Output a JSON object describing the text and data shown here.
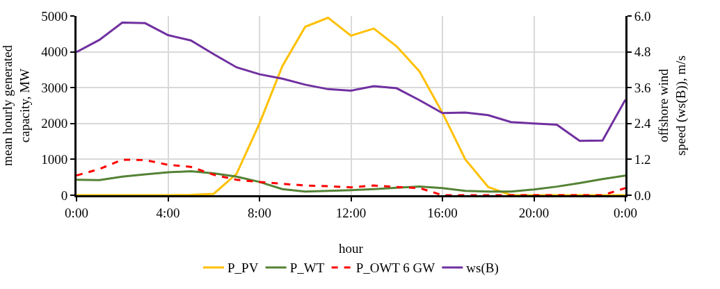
{
  "chart_data": {
    "type": "line",
    "xlabel": "hour",
    "ylabel": "mean hourly generated capacity, MW",
    "y2label": "offshore wind speed (ws(B)), m/s",
    "x": [
      0,
      1,
      2,
      3,
      4,
      5,
      6,
      7,
      8,
      9,
      10,
      11,
      12,
      13,
      14,
      15,
      16,
      17,
      18,
      19,
      20,
      21,
      22,
      23,
      24
    ],
    "xlim": [
      0,
      24
    ],
    "xticks": [
      {
        "value": 0,
        "label": "0:00"
      },
      {
        "value": 4,
        "label": "4:00"
      },
      {
        "value": 8,
        "label": "8:00"
      },
      {
        "value": 12,
        "label": "12:00"
      },
      {
        "value": 16,
        "label": "16:00"
      },
      {
        "value": 20,
        "label": "20:00"
      },
      {
        "value": 24,
        "label": "0:00"
      }
    ],
    "ylim": [
      0,
      5000
    ],
    "yticks": [
      0,
      1000,
      2000,
      3000,
      4000,
      5000
    ],
    "y2lim": [
      0,
      6
    ],
    "y2ticks": [
      {
        "value": 0,
        "label": "0.0"
      },
      {
        "value": 1.2,
        "label": "1.2"
      },
      {
        "value": 2.4,
        "label": "2.4"
      },
      {
        "value": 3.6,
        "label": "3.6"
      },
      {
        "value": 4.8,
        "label": "4.8"
      },
      {
        "value": 6,
        "label": "6.0"
      }
    ],
    "grid": true,
    "legend": "bottom",
    "marker": "none",
    "series": [
      {
        "name": "P_PV",
        "color": "#ffc000",
        "values": [
          0,
          0,
          0,
          0,
          0,
          10,
          40,
          600,
          2000,
          3600,
          4700,
          4950,
          4450,
          4650,
          4150,
          3450,
          2300,
          1000,
          230,
          0,
          0,
          0,
          0,
          0,
          0
        ]
      },
      {
        "name": "P_WT",
        "color": "#548235",
        "values": [
          430,
          420,
          520,
          580,
          640,
          670,
          610,
          520,
          370,
          170,
          100,
          120,
          140,
          170,
          210,
          240,
          200,
          120,
          100,
          100,
          160,
          240,
          340,
          450,
          550
        ]
      },
      {
        "name": "P_OWT 6 GW",
        "color": "#ff0000",
        "line_style": "dashed",
        "values": [
          550,
          730,
          990,
          980,
          850,
          790,
          570,
          430,
          370,
          320,
          270,
          250,
          220,
          270,
          230,
          200,
          0,
          0,
          0,
          0,
          0,
          0,
          0,
          0,
          200
        ]
      },
      {
        "name": "ws(B)",
        "color": "#7030a0",
        "axis": "y2",
        "values": [
          4.79,
          5.2,
          5.78,
          5.76,
          5.36,
          5.18,
          4.72,
          4.28,
          4.05,
          3.9,
          3.7,
          3.55,
          3.5,
          3.65,
          3.58,
          3.18,
          2.75,
          2.77,
          2.68,
          2.45,
          2.4,
          2.36,
          1.82,
          1.83,
          3.2
        ]
      }
    ]
  }
}
